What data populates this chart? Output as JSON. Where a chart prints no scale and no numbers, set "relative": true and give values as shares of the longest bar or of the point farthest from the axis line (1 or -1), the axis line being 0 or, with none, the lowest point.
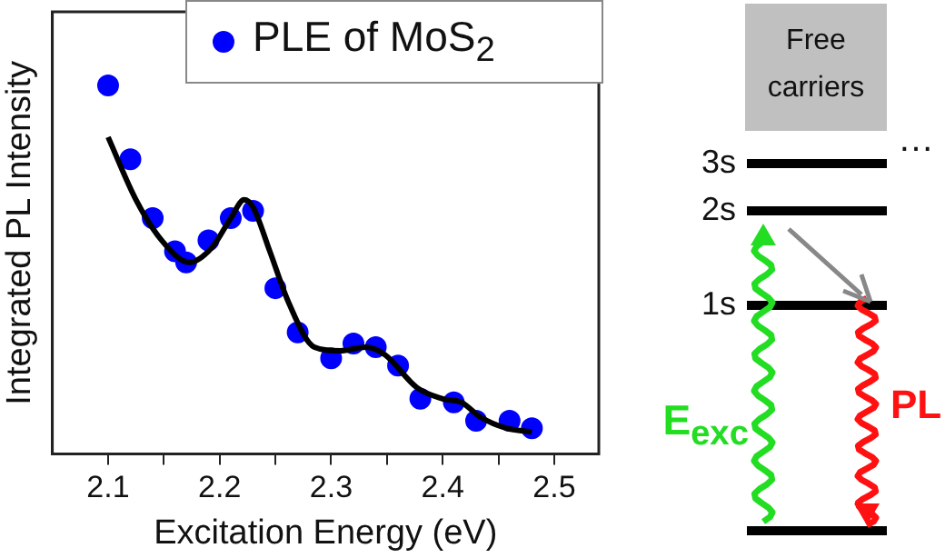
{
  "chart_data": [
    {
      "type": "scatter",
      "xlabel": "Excitation Energy (eV)",
      "ylabel": "Integrated PL Intensity",
      "relative": true,
      "xlim": [
        2.05,
        2.54
      ],
      "xticks": [
        2.1,
        {
          "value": 2.15,
          "label": null
        },
        2.2,
        {
          "value": 2.25,
          "label": null
        },
        2.3,
        {
          "value": 2.35,
          "label": null
        },
        2.4,
        {
          "value": 2.45,
          "label": null
        },
        2.5
      ],
      "tick_labels": "x",
      "grid": false,
      "legend": "top right",
      "series": [
        {
          "name": "PLE of MoS$_{2}$",
          "type": "scatter",
          "color": "#0000ff",
          "marker": "circle",
          "x": [
            2.1,
            2.12,
            2.14,
            2.16,
            2.17,
            2.19,
            2.21,
            2.23,
            2.25,
            2.27,
            2.3,
            2.32,
            2.34,
            2.36,
            2.38,
            2.41,
            2.43,
            2.46,
            2.48
          ],
          "values": [
            1.0,
            0.8,
            0.64,
            0.55,
            0.52,
            0.58,
            0.64,
            0.66,
            0.45,
            0.33,
            0.26,
            0.3,
            0.29,
            0.24,
            0.15,
            0.14,
            0.09,
            0.09,
            0.07
          ]
        },
        {
          "type": "line",
          "color": "#000000",
          "marker": "none",
          "line_style": "solid",
          "x": [
            2.1,
            2.125,
            2.148,
            2.173,
            2.193,
            2.21,
            2.222,
            2.23,
            2.245,
            2.262,
            2.285,
            2.308,
            2.331,
            2.348,
            2.377,
            2.4,
            2.417,
            2.434,
            2.457,
            2.48
          ],
          "values": [
            0.86,
            0.69,
            0.58,
            0.52,
            0.56,
            0.64,
            0.69,
            0.67,
            0.55,
            0.41,
            0.29,
            0.28,
            0.29,
            0.27,
            0.18,
            0.15,
            0.14,
            0.1,
            0.07,
            0.06
          ]
        }
      ]
    },
    {
      "type": "other",
      "annotations": [
        "Free carriers",
        "3s",
        "2s",
        "1s",
        "E$_{exc}$",
        "PL",
        "…"
      ]
    }
  ]
}
